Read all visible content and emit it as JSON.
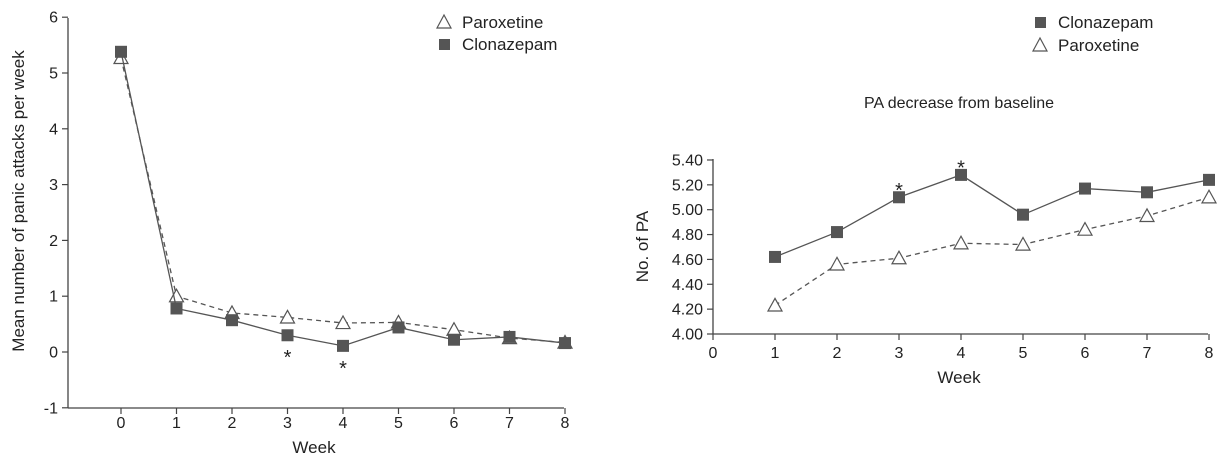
{
  "chart_data": [
    {
      "type": "line",
      "title": "",
      "xlabel": "Week",
      "ylabel": "Mean number of panic attacks per week",
      "x": [
        0,
        1,
        2,
        3,
        4,
        5,
        6,
        7,
        8
      ],
      "xlim": [
        -1,
        8
      ],
      "ylim": [
        -1,
        6
      ],
      "y_ticks": [
        "-1",
        "0",
        "1",
        "2",
        "3",
        "4",
        "5",
        "6"
      ],
      "x_ticks": [
        "0",
        "1",
        "2",
        "3",
        "4",
        "5",
        "6",
        "7",
        "8"
      ],
      "legend": "top-right",
      "series": [
        {
          "name": "Paroxetine",
          "marker": "open-triangle",
          "line": "dashed",
          "values": [
            5.27,
            1.0,
            0.7,
            0.62,
            0.52,
            0.53,
            0.4,
            0.25,
            0.17
          ]
        },
        {
          "name": "Clonazepam",
          "marker": "filled-square",
          "line": "solid",
          "values": [
            5.38,
            0.78,
            0.57,
            0.3,
            0.11,
            0.44,
            0.22,
            0.27,
            0.16
          ]
        }
      ],
      "annotations": [
        {
          "text": "*",
          "x": 3,
          "y": 0.0
        },
        {
          "text": "*",
          "x": 4,
          "y": -0.2
        }
      ]
    },
    {
      "type": "line",
      "title": "PA decrease from baseline",
      "xlabel": "Week",
      "ylabel": "No. of PA",
      "x": [
        1,
        2,
        3,
        4,
        5,
        6,
        7,
        8
      ],
      "xlim": [
        0,
        8
      ],
      "ylim": [
        4.0,
        5.4
      ],
      "y_ticks": [
        "4.00",
        "4.20",
        "4.40",
        "4.60",
        "4.80",
        "5.00",
        "5.20",
        "5.40"
      ],
      "x_ticks": [
        "0",
        "1",
        "2",
        "3",
        "4",
        "5",
        "6",
        "7",
        "8"
      ],
      "legend": "top-right",
      "series": [
        {
          "name": "Clonazepam",
          "marker": "filled-square",
          "line": "solid",
          "values": [
            4.62,
            4.82,
            5.1,
            5.28,
            4.96,
            5.17,
            5.14,
            5.24
          ]
        },
        {
          "name": "Paroxetine",
          "marker": "open-triangle",
          "line": "dashed",
          "values": [
            4.23,
            4.56,
            4.61,
            4.73,
            4.72,
            4.84,
            4.95,
            5.1
          ]
        }
      ],
      "annotations": [
        {
          "text": "*",
          "x": 3,
          "y": 5.2
        },
        {
          "text": "*",
          "x": 4,
          "y": 5.38
        }
      ]
    }
  ]
}
